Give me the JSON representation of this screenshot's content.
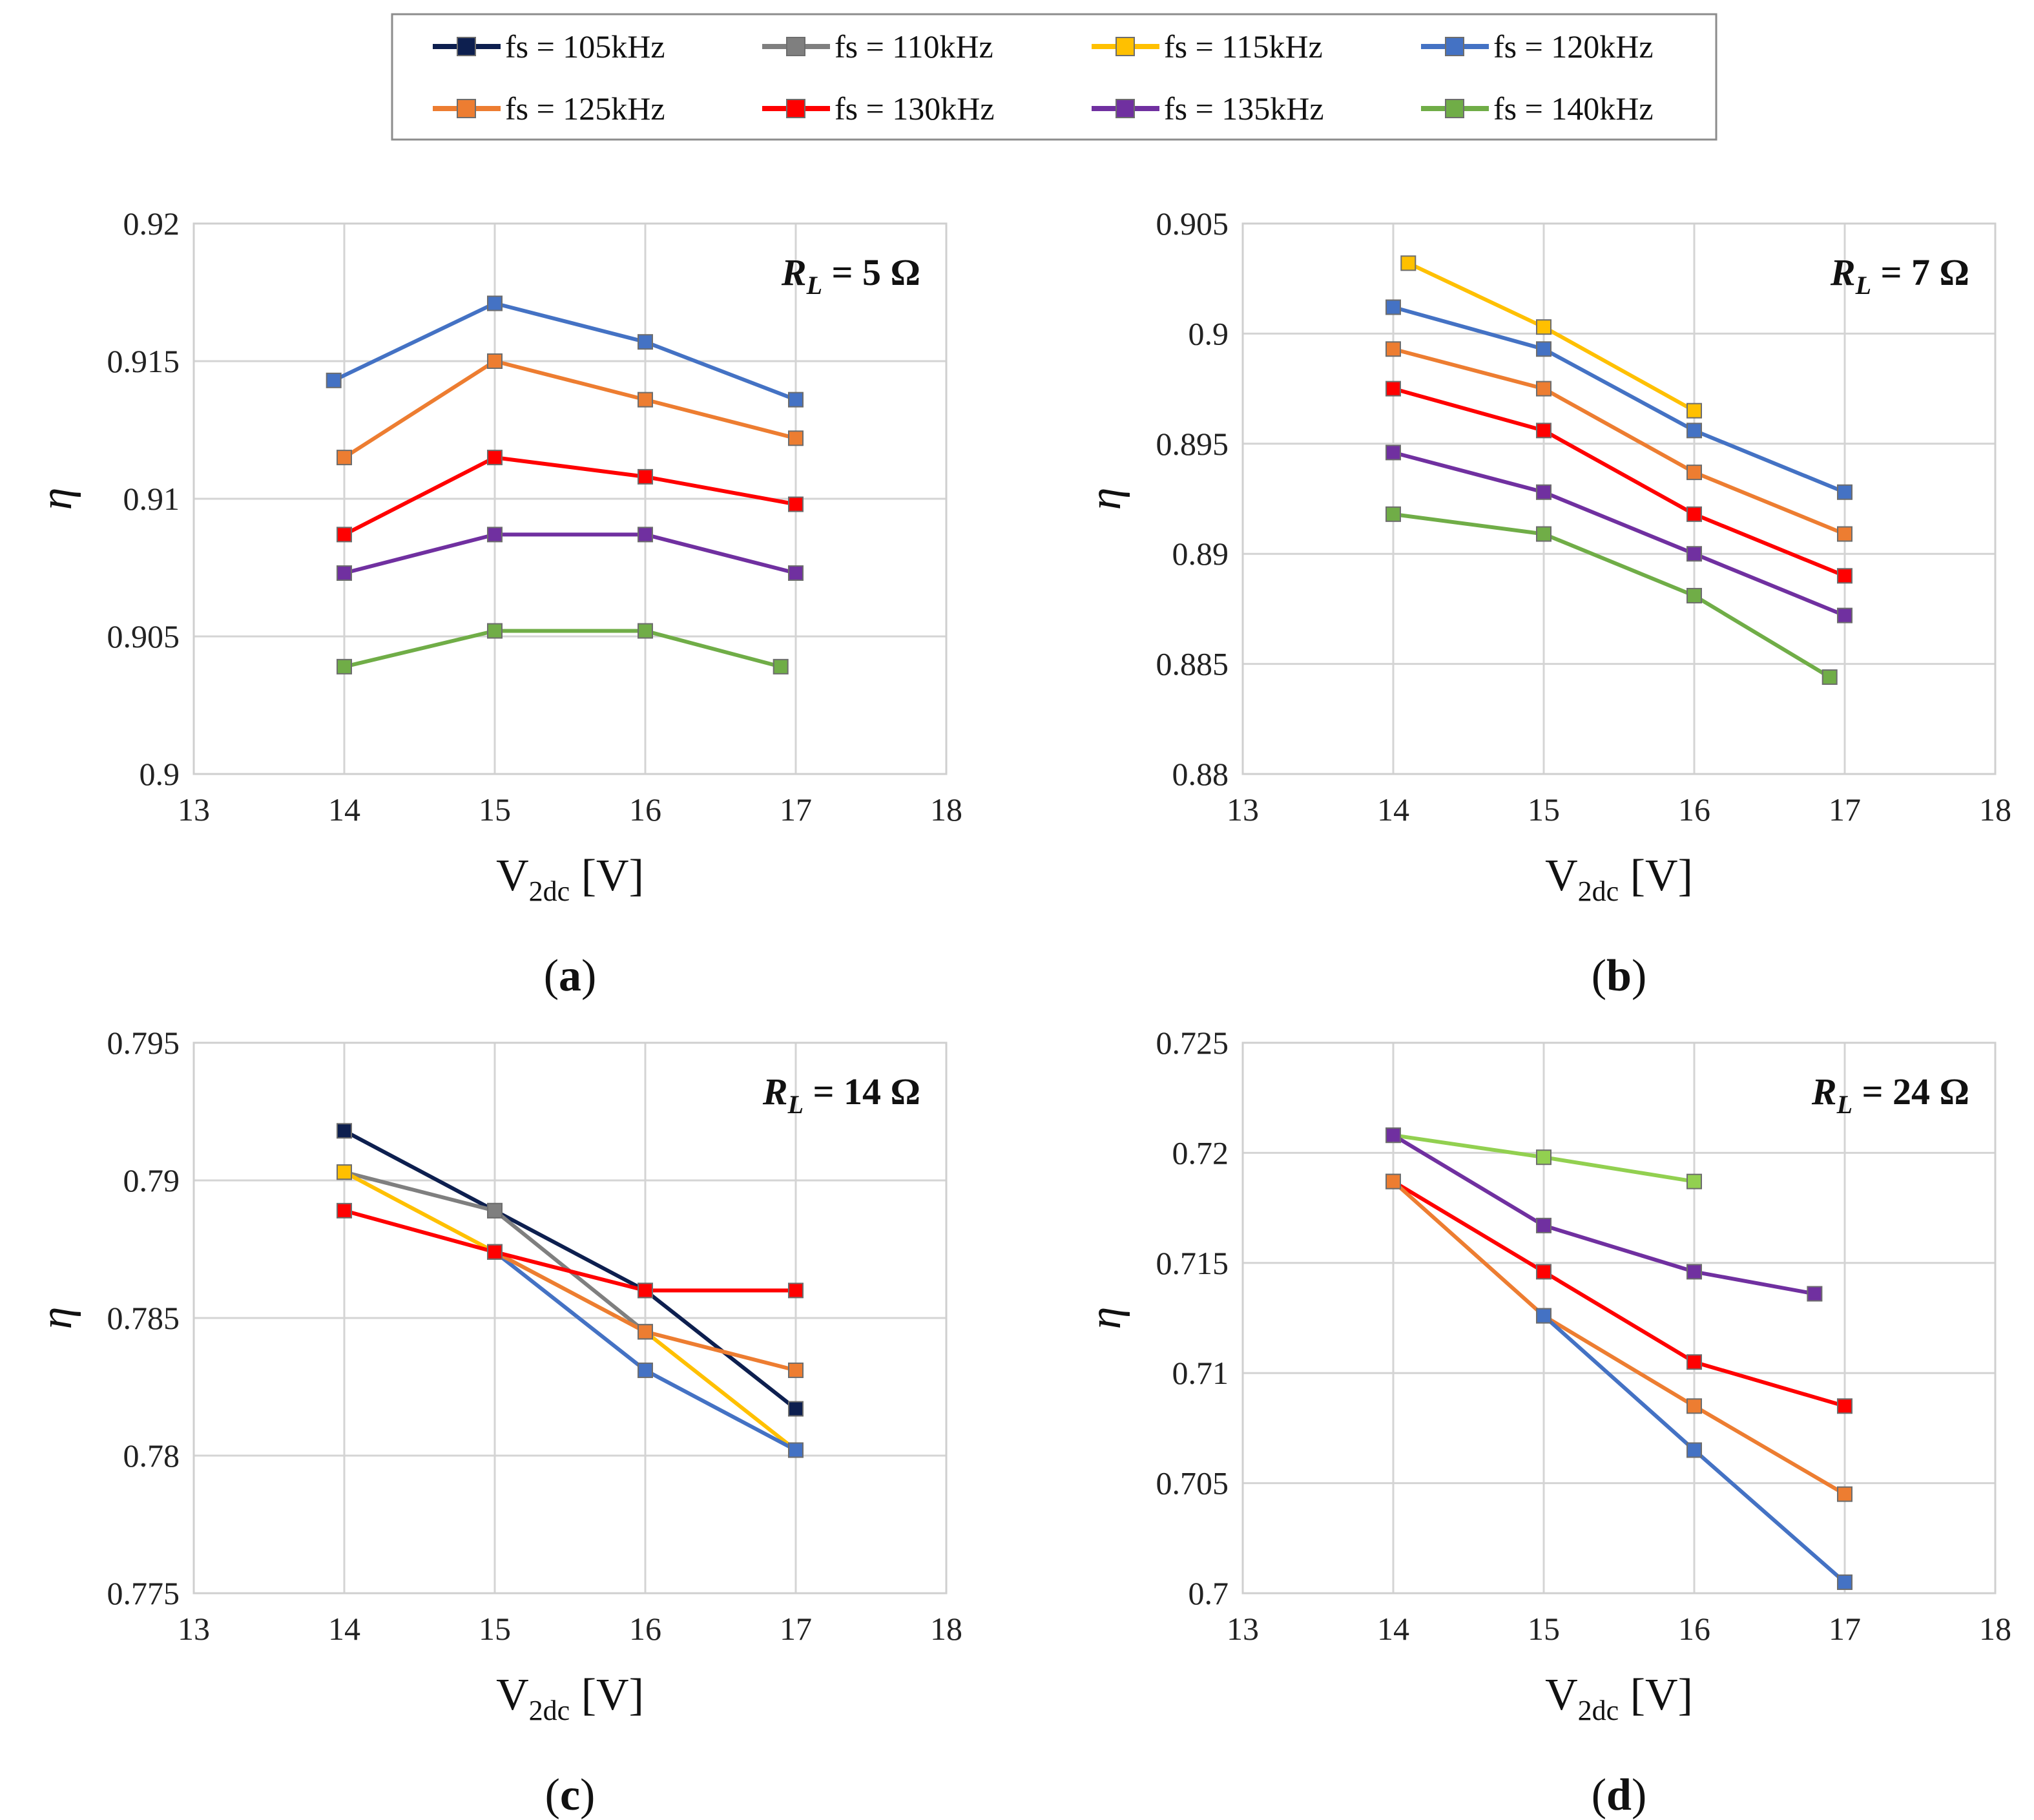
{
  "legend": {
    "entries": [
      {
        "label": "fs = 105kHz",
        "color": "#0d1f4f"
      },
      {
        "label": "fs = 110kHz",
        "color": "#7f7f7f"
      },
      {
        "label": "fs = 115kHz",
        "color": "#ffc000"
      },
      {
        "label": "fs = 120kHz",
        "color": "#4472c4"
      },
      {
        "label": "fs = 125kHz",
        "color": "#ed7d31"
      },
      {
        "label": "fs = 130kHz",
        "color": "#ff0000"
      },
      {
        "label": "fs = 135kHz",
        "color": "#7030a0"
      },
      {
        "label": "fs = 140kHz",
        "color": "#70ad47"
      }
    ]
  },
  "chart_data": [
    {
      "type": "line",
      "panel": "(a)",
      "panel_letter": "a",
      "annotation": {
        "var": "R",
        "sub": "L",
        "rest": " = 5 Ω"
      },
      "xlabel": {
        "main": "V",
        "sub": "2dc",
        "unit": " [V]"
      },
      "ylabel": "η",
      "xlim": [
        13,
        18
      ],
      "xticks": [
        "13",
        "14",
        "15",
        "16",
        "17",
        "18"
      ],
      "ylim": [
        0.9,
        0.92
      ],
      "yticks": [
        "0.9",
        "0.905",
        "0.91",
        "0.915",
        "0.92"
      ],
      "series": [
        {
          "name": "fs = 120kHz",
          "color": "#4472c4",
          "x": [
            13.93,
            15,
            16,
            17
          ],
          "y": [
            0.9143,
            0.9171,
            0.9157,
            0.9136
          ]
        },
        {
          "name": "fs = 125kHz",
          "color": "#ed7d31",
          "x": [
            14,
            15,
            16,
            17
          ],
          "y": [
            0.9115,
            0.915,
            0.9136,
            0.9122
          ]
        },
        {
          "name": "fs = 130kHz",
          "color": "#ff0000",
          "x": [
            14,
            15,
            16,
            17
          ],
          "y": [
            0.9087,
            0.9115,
            0.9108,
            0.9098
          ]
        },
        {
          "name": "fs = 135kHz",
          "color": "#7030a0",
          "x": [
            14,
            15,
            16,
            17
          ],
          "y": [
            0.9073,
            0.9087,
            0.9087,
            0.9073
          ]
        },
        {
          "name": "fs = 140kHz",
          "color": "#70ad47",
          "x": [
            14,
            15,
            16,
            16.9
          ],
          "y": [
            0.9039,
            0.9052,
            0.9052,
            0.9039
          ]
        }
      ]
    },
    {
      "type": "line",
      "panel": "(b)",
      "panel_letter": "b",
      "annotation": {
        "var": "R",
        "sub": "L",
        "rest": " = 7 Ω"
      },
      "xlabel": {
        "main": "V",
        "sub": "2dc",
        "unit": " [V]"
      },
      "ylabel": "η",
      "xlim": [
        13,
        18
      ],
      "xticks": [
        "13",
        "14",
        "15",
        "16",
        "17",
        "18"
      ],
      "ylim": [
        0.88,
        0.905
      ],
      "yticks": [
        "0.88",
        "0.885",
        "0.89",
        "0.895",
        "0.9",
        "0.905"
      ],
      "series": [
        {
          "name": "fs = 115kHz",
          "color": "#ffc000",
          "x": [
            14.1,
            15,
            16
          ],
          "y": [
            0.9032,
            0.9003,
            0.8965
          ]
        },
        {
          "name": "fs = 120kHz",
          "color": "#4472c4",
          "x": [
            14,
            15,
            16,
            17
          ],
          "y": [
            0.9012,
            0.8993,
            0.8956,
            0.8928
          ]
        },
        {
          "name": "fs = 125kHz",
          "color": "#ed7d31",
          "x": [
            14,
            15,
            16,
            17
          ],
          "y": [
            0.8993,
            0.8975,
            0.8937,
            0.8909
          ]
        },
        {
          "name": "fs = 130kHz",
          "color": "#ff0000",
          "x": [
            14,
            15,
            16,
            17
          ],
          "y": [
            0.8975,
            0.8956,
            0.8918,
            0.889
          ]
        },
        {
          "name": "fs = 135kHz",
          "color": "#7030a0",
          "x": [
            14,
            15,
            16,
            17
          ],
          "y": [
            0.8946,
            0.8928,
            0.89,
            0.8872
          ]
        },
        {
          "name": "fs = 140kHz",
          "color": "#70ad47",
          "x": [
            14,
            15,
            16,
            16.9
          ],
          "y": [
            0.8918,
            0.8909,
            0.8881,
            0.8844
          ]
        }
      ]
    },
    {
      "type": "line",
      "panel": "(c)",
      "panel_letter": "c",
      "annotation": {
        "var": "R",
        "sub": "L",
        "rest": " = 14 Ω"
      },
      "xlabel": {
        "main": "V",
        "sub": "2dc",
        "unit": " [V]"
      },
      "ylabel": "η",
      "xlim": [
        13,
        18
      ],
      "xticks": [
        "13",
        "14",
        "15",
        "16",
        "17",
        "18"
      ],
      "ylim": [
        0.775,
        0.795
      ],
      "yticks": [
        "0.775",
        "0.78",
        "0.785",
        "0.79",
        "0.795"
      ],
      "series": [
        {
          "name": "fs = 105kHz",
          "color": "#0d1f4f",
          "x": [
            14,
            15,
            16,
            17
          ],
          "y": [
            0.7918,
            0.7889,
            0.786,
            0.7817
          ]
        },
        {
          "name": "fs = 110kHz",
          "color": "#7f7f7f",
          "x": [
            14,
            15,
            16
          ],
          "y": [
            0.7903,
            0.7889,
            0.7845
          ]
        },
        {
          "name": "fs = 115kHz",
          "color": "#ffc000",
          "x": [
            14,
            15,
            16,
            17
          ],
          "y": [
            0.7903,
            0.7874,
            0.7845,
            0.7802
          ]
        },
        {
          "name": "fs = 120kHz",
          "color": "#4472c4",
          "x": [
            15,
            16,
            17
          ],
          "y": [
            0.7874,
            0.7831,
            0.7802
          ]
        },
        {
          "name": "fs = 125kHz",
          "color": "#ed7d31",
          "x": [
            15,
            16,
            17
          ],
          "y": [
            0.7874,
            0.7845,
            0.7831
          ]
        },
        {
          "name": "fs = 130kHz",
          "color": "#ff0000",
          "x": [
            14,
            15,
            16,
            17
          ],
          "y": [
            0.7889,
            0.7874,
            0.786,
            0.786
          ]
        }
      ]
    },
    {
      "type": "line",
      "panel": "(d)",
      "panel_letter": "d",
      "annotation": {
        "var": "R",
        "sub": "L",
        "rest": " = 24 Ω"
      },
      "xlabel": {
        "main": "V",
        "sub": "2dc",
        "unit": " [V]"
      },
      "ylabel": "η",
      "xlim": [
        13,
        18
      ],
      "xticks": [
        "13",
        "14",
        "15",
        "16",
        "17",
        "18"
      ],
      "ylim": [
        0.7,
        0.725
      ],
      "yticks": [
        "0.7",
        "0.705",
        "0.71",
        "0.715",
        "0.72",
        "0.725"
      ],
      "series": [
        {
          "name": "fs = 140kHz",
          "color": "#92d050",
          "x": [
            14,
            15,
            16
          ],
          "y": [
            0.7208,
            0.7198,
            0.7187
          ]
        },
        {
          "name": "fs = 135kHz",
          "color": "#7030a0",
          "x": [
            14,
            15,
            16,
            16.8
          ],
          "y": [
            0.7208,
            0.7167,
            0.7146,
            0.7136
          ]
        },
        {
          "name": "fs = 130kHz",
          "color": "#ff0000",
          "x": [
            14,
            15,
            16,
            17
          ],
          "y": [
            0.7187,
            0.7146,
            0.7105,
            0.7085
          ]
        },
        {
          "name": "fs = 125kHz",
          "color": "#ed7d31",
          "x": [
            14,
            15,
            16,
            17
          ],
          "y": [
            0.7187,
            0.7126,
            0.7085,
            0.7045
          ]
        },
        {
          "name": "fs = 120kHz",
          "color": "#4472c4",
          "x": [
            15,
            16,
            17
          ],
          "y": [
            0.7126,
            0.7065,
            0.7005
          ]
        }
      ]
    }
  ]
}
